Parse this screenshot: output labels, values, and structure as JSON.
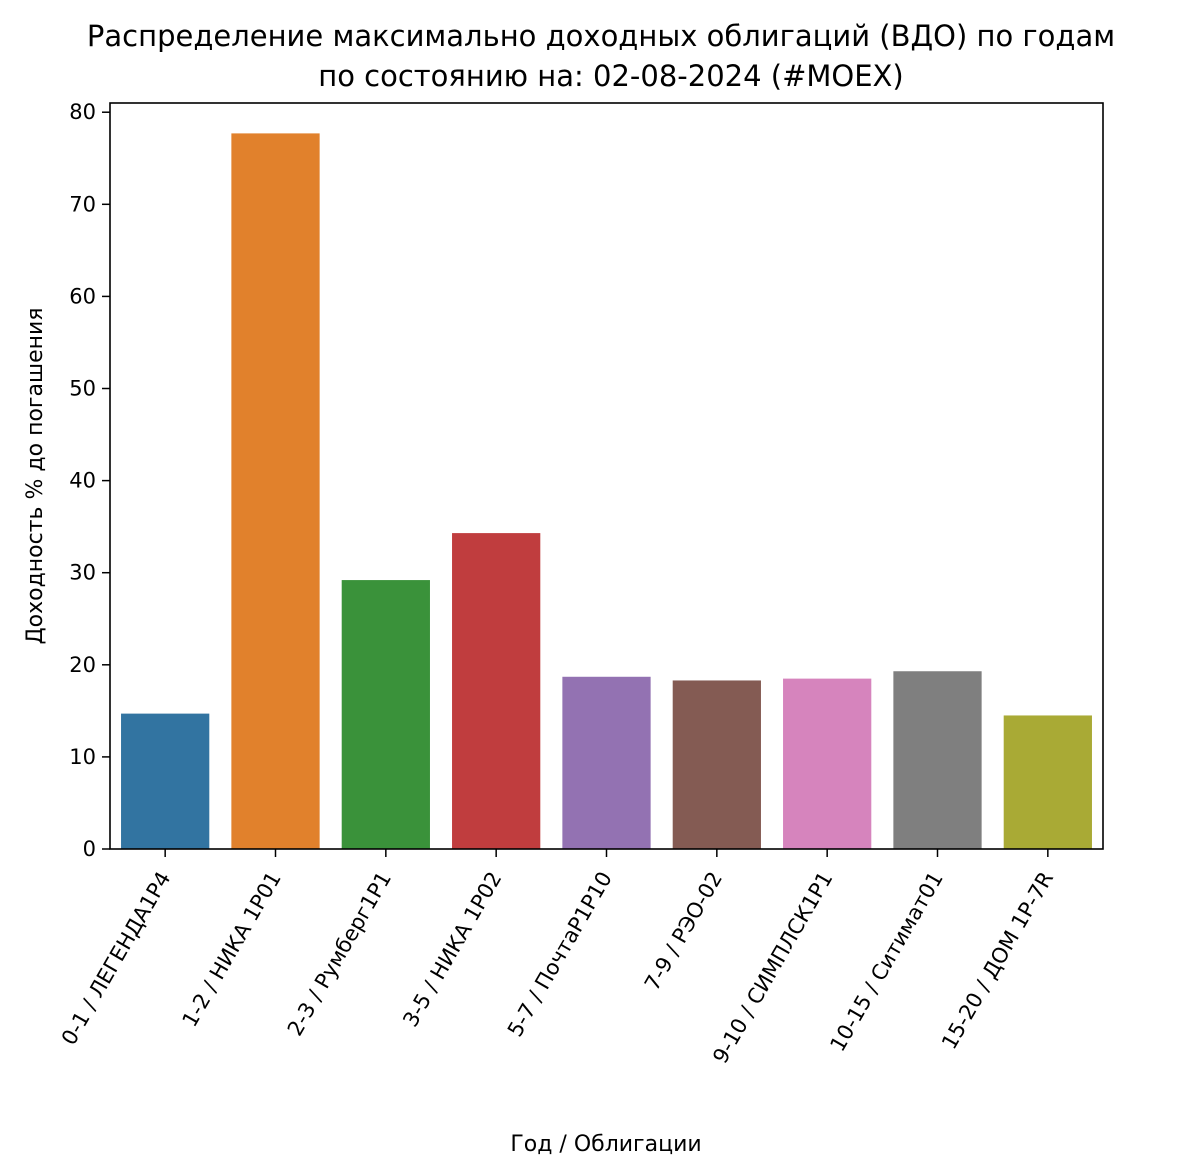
{
  "chart_data": {
    "type": "bar",
    "title_line1": "Распределение максимально доходных облигаций (ВДО) по годам",
    "title_line2": "по состоянию на: 02-08-2024 (#MOEX)",
    "xlabel": "Год / Облигации",
    "ylabel": "Доходность % до погашения",
    "ylim": [
      0,
      81
    ],
    "yticks": [
      0,
      10,
      20,
      30,
      40,
      50,
      60,
      70,
      80
    ],
    "grid": false,
    "legend": "none",
    "categories": [
      "0-1 / ЛЕГЕНДА1Р4",
      "1-2 / НИКА 1Р01",
      "2-3 / Румберг1Р1",
      "3-5 / НИКА 1Р02",
      "5-7 / ПочтаР1Р10",
      "7-9 / РЭО-02",
      "9-10 / СИМПЛСК1Р1",
      "10-15 / Ситимат01",
      "15-20 / ДОМ 1Р-7R"
    ],
    "values": [
      14.7,
      77.7,
      29.2,
      34.3,
      18.7,
      18.3,
      18.5,
      19.3,
      14.5
    ],
    "colors": [
      "#3274a1",
      "#e1812c",
      "#3a923a",
      "#c03d3e",
      "#9372b2",
      "#845b53",
      "#d684bd",
      "#7f7f7f",
      "#a9aa35"
    ]
  }
}
